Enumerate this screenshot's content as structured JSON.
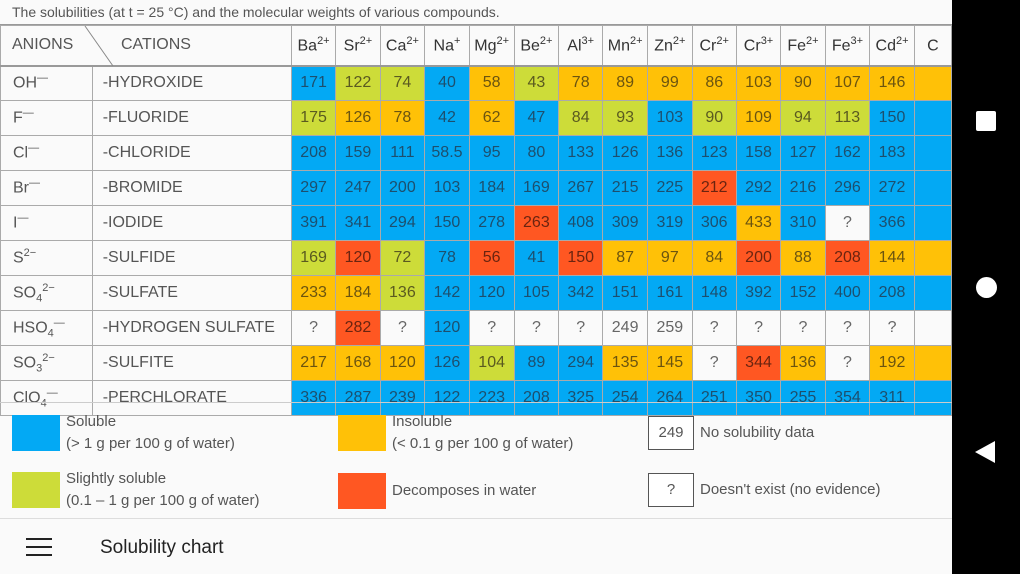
{
  "caption": "The solubilities (at t = 25 °C) and the molecular weights of various compounds.",
  "header": {
    "anions": "ANIONS",
    "cations": "CATIONS"
  },
  "cations": [
    {
      "b": "Ba",
      "c": "2+"
    },
    {
      "b": "Sr",
      "c": "2+"
    },
    {
      "b": "Ca",
      "c": "2+"
    },
    {
      "b": "Na",
      "c": "+"
    },
    {
      "b": "Mg",
      "c": "2+"
    },
    {
      "b": "Be",
      "c": "2+"
    },
    {
      "b": "Al",
      "c": "3+"
    },
    {
      "b": "Mn",
      "c": "2+"
    },
    {
      "b": "Zn",
      "c": "2+"
    },
    {
      "b": "Cr",
      "c": "2+"
    },
    {
      "b": "Cr",
      "c": "3+"
    },
    {
      "b": "Fe",
      "c": "2+"
    },
    {
      "b": "Fe",
      "c": "3+"
    },
    {
      "b": "Cd",
      "c": "2+"
    },
    {
      "b": "C",
      "c": ""
    }
  ],
  "rows": [
    {
      "anion": "OH",
      "sub": "",
      "charge": "—",
      "name": "-HYDROXIDE",
      "cells": [
        [
          "171",
          "s"
        ],
        [
          "122",
          "l"
        ],
        [
          "74",
          "l"
        ],
        [
          "40",
          "s"
        ],
        [
          "58",
          "i"
        ],
        [
          "43",
          "l"
        ],
        [
          "78",
          "i"
        ],
        [
          "89",
          "i"
        ],
        [
          "99",
          "i"
        ],
        [
          "86",
          "i"
        ],
        [
          "103",
          "i"
        ],
        [
          "90",
          "i"
        ],
        [
          "107",
          "i"
        ],
        [
          "146",
          "i"
        ],
        [
          "",
          "i"
        ]
      ]
    },
    {
      "anion": "F",
      "sub": "",
      "charge": "—",
      "name": "-FLUORIDE",
      "cells": [
        [
          "175",
          "l"
        ],
        [
          "126",
          "i"
        ],
        [
          "78",
          "i"
        ],
        [
          "42",
          "s"
        ],
        [
          "62",
          "i"
        ],
        [
          "47",
          "s"
        ],
        [
          "84",
          "l"
        ],
        [
          "93",
          "l"
        ],
        [
          "103",
          "s"
        ],
        [
          "90",
          "l"
        ],
        [
          "109",
          "i"
        ],
        [
          "94",
          "l"
        ],
        [
          "113",
          "l"
        ],
        [
          "150",
          "s"
        ],
        [
          "",
          "s"
        ]
      ]
    },
    {
      "anion": "Cl",
      "sub": "",
      "charge": "—",
      "name": "-CHLORIDE",
      "cells": [
        [
          "208",
          "s"
        ],
        [
          "159",
          "s"
        ],
        [
          "111",
          "s"
        ],
        [
          "58.5",
          "s"
        ],
        [
          "95",
          "s"
        ],
        [
          "80",
          "s"
        ],
        [
          "133",
          "s"
        ],
        [
          "126",
          "s"
        ],
        [
          "136",
          "s"
        ],
        [
          "123",
          "s"
        ],
        [
          "158",
          "s"
        ],
        [
          "127",
          "s"
        ],
        [
          "162",
          "s"
        ],
        [
          "183",
          "s"
        ],
        [
          "",
          "s"
        ]
      ]
    },
    {
      "anion": "Br",
      "sub": "",
      "charge": "—",
      "name": "-BROMIDE",
      "cells": [
        [
          "297",
          "s"
        ],
        [
          "247",
          "s"
        ],
        [
          "200",
          "s"
        ],
        [
          "103",
          "s"
        ],
        [
          "184",
          "s"
        ],
        [
          "169",
          "s"
        ],
        [
          "267",
          "s"
        ],
        [
          "215",
          "s"
        ],
        [
          "225",
          "s"
        ],
        [
          "212",
          "d"
        ],
        [
          "292",
          "s"
        ],
        [
          "216",
          "s"
        ],
        [
          "296",
          "s"
        ],
        [
          "272",
          "s"
        ],
        [
          "",
          "s"
        ]
      ]
    },
    {
      "anion": "I",
      "sub": "",
      "charge": "—",
      "name": "-IODIDE",
      "cells": [
        [
          "391",
          "s"
        ],
        [
          "341",
          "s"
        ],
        [
          "294",
          "s"
        ],
        [
          "150",
          "s"
        ],
        [
          "278",
          "s"
        ],
        [
          "263",
          "d"
        ],
        [
          "408",
          "s"
        ],
        [
          "309",
          "s"
        ],
        [
          "319",
          "s"
        ],
        [
          "306",
          "s"
        ],
        [
          "433",
          "i"
        ],
        [
          "310",
          "s"
        ],
        [
          "?",
          "n"
        ],
        [
          "366",
          "s"
        ],
        [
          "",
          "s"
        ]
      ]
    },
    {
      "anion": "S",
      "sub": "",
      "charge": "2−",
      "name": "-SULFIDE",
      "cells": [
        [
          "169",
          "l"
        ],
        [
          "120",
          "d"
        ],
        [
          "72",
          "l"
        ],
        [
          "78",
          "s"
        ],
        [
          "56",
          "d"
        ],
        [
          "41",
          "s"
        ],
        [
          "150",
          "d"
        ],
        [
          "87",
          "i"
        ],
        [
          "97",
          "i"
        ],
        [
          "84",
          "i"
        ],
        [
          "200",
          "d"
        ],
        [
          "88",
          "i"
        ],
        [
          "208",
          "d"
        ],
        [
          "144",
          "i"
        ],
        [
          "",
          "i"
        ]
      ]
    },
    {
      "anion": "SO",
      "sub": "4",
      "charge": "2−",
      "name": "-SULFATE",
      "cells": [
        [
          "233",
          "i"
        ],
        [
          "184",
          "i"
        ],
        [
          "136",
          "l"
        ],
        [
          "142",
          "s"
        ],
        [
          "120",
          "s"
        ],
        [
          "105",
          "s"
        ],
        [
          "342",
          "s"
        ],
        [
          "151",
          "s"
        ],
        [
          "161",
          "s"
        ],
        [
          "148",
          "s"
        ],
        [
          "392",
          "s"
        ],
        [
          "152",
          "s"
        ],
        [
          "400",
          "s"
        ],
        [
          "208",
          "s"
        ],
        [
          "",
          "s"
        ]
      ]
    },
    {
      "anion": "HSO",
      "sub": "4",
      "charge": "—",
      "name": "-HYDROGEN SULFATE",
      "cells": [
        [
          "?",
          "n"
        ],
        [
          "282",
          "d"
        ],
        [
          "?",
          "n"
        ],
        [
          "120",
          "s"
        ],
        [
          "?",
          "n"
        ],
        [
          "?",
          "n"
        ],
        [
          "?",
          "n"
        ],
        [
          "249",
          "n"
        ],
        [
          "259",
          "n"
        ],
        [
          "?",
          "n"
        ],
        [
          "?",
          "n"
        ],
        [
          "?",
          "n"
        ],
        [
          "?",
          "n"
        ],
        [
          "?",
          "n"
        ],
        [
          "",
          "n"
        ]
      ]
    },
    {
      "anion": "SO",
      "sub": "3",
      "charge": "2−",
      "name": "-SULFITE",
      "cells": [
        [
          "217",
          "i"
        ],
        [
          "168",
          "i"
        ],
        [
          "120",
          "i"
        ],
        [
          "126",
          "s"
        ],
        [
          "104",
          "l"
        ],
        [
          "89",
          "s"
        ],
        [
          "294",
          "s"
        ],
        [
          "135",
          "i"
        ],
        [
          "145",
          "i"
        ],
        [
          "?",
          "n"
        ],
        [
          "344",
          "d"
        ],
        [
          "136",
          "i"
        ],
        [
          "?",
          "n"
        ],
        [
          "192",
          "i"
        ],
        [
          "",
          "i"
        ]
      ]
    },
    {
      "anion": "ClO",
      "sub": "4",
      "charge": "—",
      "name": "-PERCHLORATE",
      "cells": [
        [
          "336",
          "s"
        ],
        [
          "287",
          "s"
        ],
        [
          "239",
          "s"
        ],
        [
          "122",
          "s"
        ],
        [
          "223",
          "s"
        ],
        [
          "208",
          "s"
        ],
        [
          "325",
          "s"
        ],
        [
          "254",
          "s"
        ],
        [
          "264",
          "s"
        ],
        [
          "251",
          "s"
        ],
        [
          "350",
          "s"
        ],
        [
          "255",
          "s"
        ],
        [
          "354",
          "s"
        ],
        [
          "311",
          "s"
        ],
        [
          "",
          "s"
        ]
      ]
    }
  ],
  "legend": {
    "soluble": {
      "title": "Soluble",
      "desc": "(> 1 g per 100 g of water)",
      "color": "#03a9f4"
    },
    "insoluble": {
      "title": "Insoluble",
      "desc": "(< 0.1 g per 100 g of water)",
      "color": "#ffc107"
    },
    "slightly": {
      "title": "Slightly soluble",
      "desc": "(0.1 – 1 g per 100 g of water)",
      "color": "#cddc39"
    },
    "decomposes": {
      "title": "Decomposes in water",
      "color": "#ff5722"
    },
    "nodata": {
      "sample": "249",
      "title": "No solubility data"
    },
    "noexist": {
      "sample": "?",
      "title": "Doesn't exist (no evidence)"
    }
  },
  "appbar": {
    "title": "Solubility chart",
    "menu_icon": "hamburger-icon"
  },
  "navbar": {
    "icons": [
      "recents-square-icon",
      "home-circle-icon",
      "back-triangle-icon"
    ]
  }
}
